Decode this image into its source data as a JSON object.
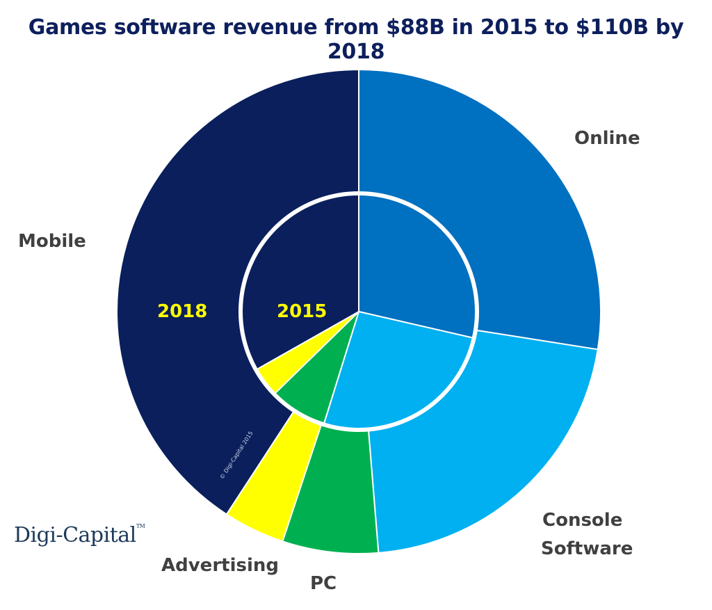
{
  "chart_data": {
    "type": "pie",
    "variant": "nested-donut",
    "title": "Games software revenue from $88B in 2015 to $110B by 2018",
    "categories": [
      "Online",
      "Console Software",
      "PC",
      "Advertising",
      "Mobile"
    ],
    "colors": [
      "#0070c0",
      "#00b0f0",
      "#00b050",
      "#ffff00",
      "#0a1f5c"
    ],
    "unit": "share of total (%), estimated from slice angles",
    "series": [
      {
        "name": "2015",
        "ring": "inner",
        "values": [
          28.6,
          26.2,
          7.9,
          4.1,
          33.2
        ]
      },
      {
        "name": "2018",
        "ring": "outer",
        "values": [
          27.5,
          21.2,
          6.4,
          4.1,
          40.8
        ]
      }
    ],
    "start_angle": "12 o'clock, clockwise",
    "legend": "none (direct labels)"
  },
  "labels": {
    "online": "Online",
    "console_1": "Console",
    "console_2": "Software",
    "pc": "PC",
    "advertising": "Advertising",
    "mobile": "Mobile",
    "year_outer": "2018",
    "year_inner": "2015"
  },
  "branding": {
    "logo": "Digi-Capital",
    "trademark": "TM",
    "watermark": "© Digi-Capital 2015"
  }
}
